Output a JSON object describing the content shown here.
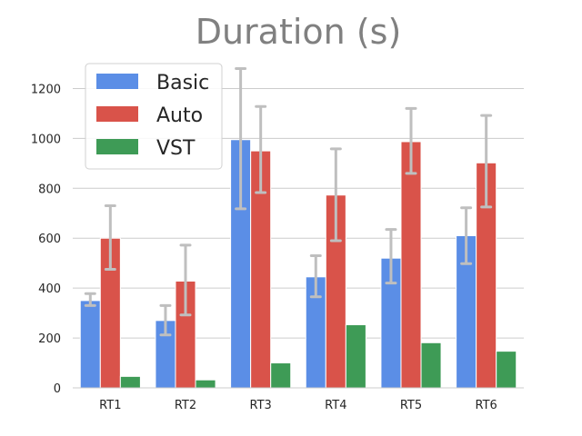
{
  "chart_data": {
    "type": "bar",
    "title": "Duration (s)",
    "xlabel": "",
    "ylabel": "",
    "ylim": [
      0,
      1300
    ],
    "yticks": [
      0,
      200,
      400,
      600,
      800,
      1000,
      1200
    ],
    "grid": true,
    "legend_position": "top-left",
    "categories": [
      "RT1",
      "RT2",
      "RT3",
      "RT4",
      "RT5",
      "RT6"
    ],
    "series": [
      {
        "name": "Basic",
        "color": "#5b8ee6",
        "values": [
          350,
          270,
          995,
          445,
          520,
          610
        ],
        "error_low": [
          330,
          212,
          718,
          365,
          420,
          498
        ],
        "error_high": [
          378,
          330,
          1280,
          530,
          635,
          722
        ]
      },
      {
        "name": "Auto",
        "color": "#d9534a",
        "values": [
          600,
          428,
          950,
          773,
          987,
          902
        ],
        "error_low": [
          475,
          292,
          783,
          590,
          860,
          725
        ],
        "error_high": [
          730,
          572,
          1128,
          958,
          1120,
          1092
        ]
      },
      {
        "name": "VST",
        "color": "#3e9b56",
        "values": [
          46,
          32,
          100,
          253,
          181,
          147
        ]
      }
    ],
    "error_bar_color": "#bfbfbf"
  }
}
